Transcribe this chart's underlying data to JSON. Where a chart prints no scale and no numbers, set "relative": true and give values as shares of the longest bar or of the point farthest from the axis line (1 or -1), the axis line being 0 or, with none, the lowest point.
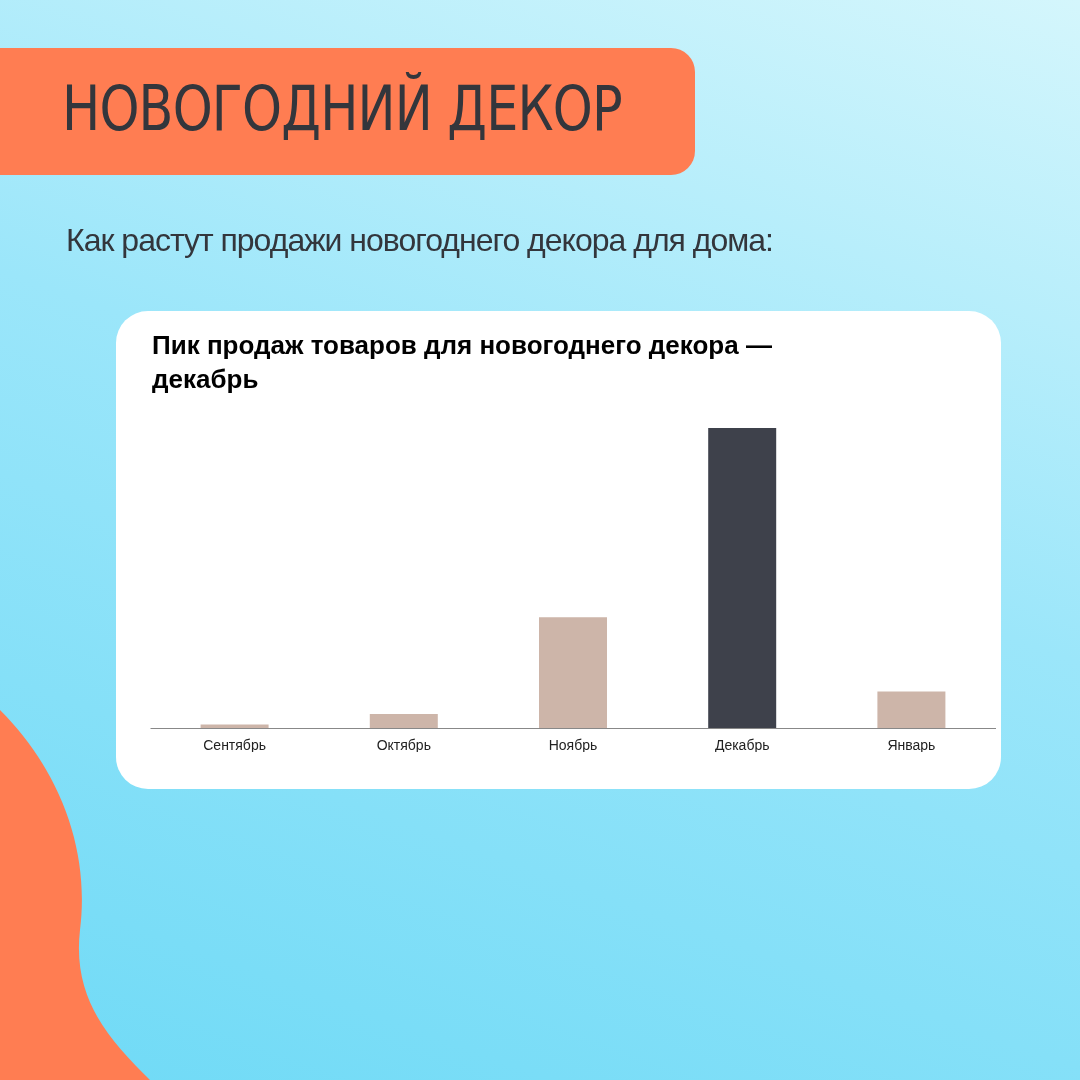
{
  "chart_data": {
    "type": "bar",
    "title": "НОВОГОДНИЙ ДЕКОР",
    "subtitle": "Как растут продажи новогоднего декора для дома:",
    "annotations": [
      "Пик продаж товаров для новогоднего декора — декабрь"
    ],
    "categories": [
      "Сентябрь",
      "Октябрь",
      "Ноябрь",
      "Декабрь",
      "Январь"
    ],
    "values": [
      0.012,
      0.047,
      0.369,
      1,
      0.122
    ],
    "colors": [
      "#cdb5a9",
      "#cdb5a9",
      "#cdb5a9",
      "#3e414b",
      "#cdb5a9"
    ],
    "relative": true
  }
}
